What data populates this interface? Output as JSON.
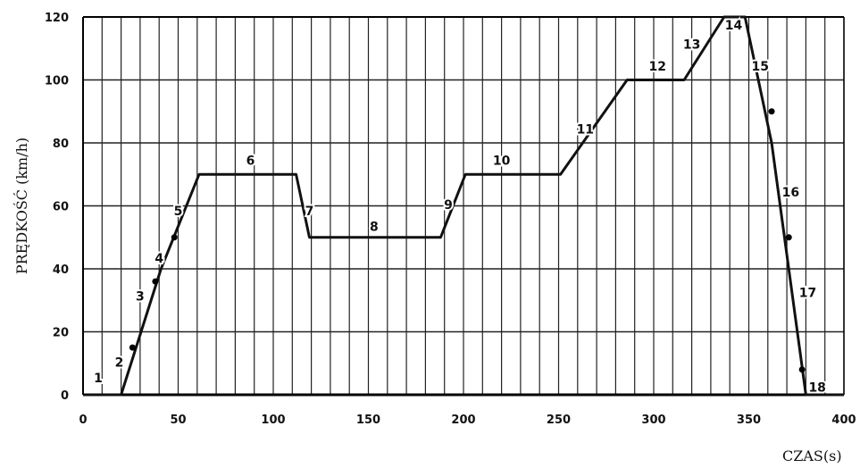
{
  "chart_data": {
    "type": "line",
    "title": "",
    "xlabel": "CZAS(s)",
    "ylabel": "PRĘDKOŚĆ  (km/h)",
    "xlim": [
      0,
      400
    ],
    "ylim": [
      0,
      120
    ],
    "x_ticks": [
      0,
      50,
      100,
      150,
      200,
      250,
      300,
      350,
      400
    ],
    "y_ticks": [
      0,
      20,
      40,
      60,
      80,
      100,
      120
    ],
    "grid_step_x": 10,
    "grid": true,
    "legend": "none",
    "line_color": "#111111",
    "series": [
      {
        "x": [
          0,
          20,
          41,
          61,
          112,
          119,
          188,
          201,
          251,
          286,
          316,
          337,
          348,
          362,
          380,
          400
        ],
        "y": [
          0,
          0,
          40,
          70,
          70,
          50,
          50,
          70,
          70,
          100,
          100,
          120,
          120,
          80,
          0,
          0
        ]
      }
    ],
    "markers": [
      {
        "x": 26,
        "y": 15
      },
      {
        "x": 38,
        "y": 36
      },
      {
        "x": 48,
        "y": 50
      },
      {
        "x": 362,
        "y": 90
      },
      {
        "x": 371,
        "y": 50
      },
      {
        "x": 378,
        "y": 8
      }
    ],
    "segment_labels": [
      {
        "text": "1",
        "x": 8,
        "y": 4
      },
      {
        "text": "2",
        "x": 19,
        "y": 9
      },
      {
        "text": "3",
        "x": 30,
        "y": 30
      },
      {
        "text": "4",
        "x": 40,
        "y": 42
      },
      {
        "text": "5",
        "x": 50,
        "y": 57
      },
      {
        "text": "6",
        "x": 88,
        "y": 73
      },
      {
        "text": "7",
        "x": 119,
        "y": 57
      },
      {
        "text": "8",
        "x": 153,
        "y": 52
      },
      {
        "text": "9",
        "x": 192,
        "y": 59
      },
      {
        "text": "10",
        "x": 220,
        "y": 73
      },
      {
        "text": "11",
        "x": 264,
        "y": 83
      },
      {
        "text": "12",
        "x": 302,
        "y": 103
      },
      {
        "text": "13",
        "x": 320,
        "y": 110
      },
      {
        "text": "14",
        "x": 342,
        "y": 116
      },
      {
        "text": "15",
        "x": 356,
        "y": 103
      },
      {
        "text": "16",
        "x": 372,
        "y": 63
      },
      {
        "text": "17",
        "x": 381,
        "y": 31
      },
      {
        "text": "18",
        "x": 386,
        "y": 1
      }
    ]
  }
}
